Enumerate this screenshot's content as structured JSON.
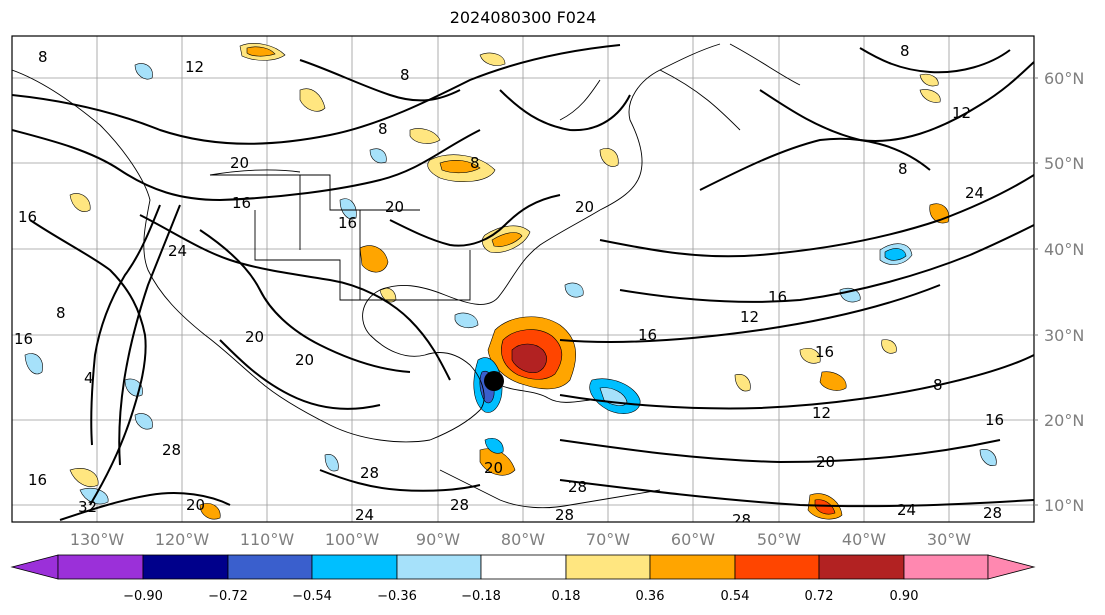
{
  "title": "2024080300 F024",
  "latitude_labels": [
    "60°N",
    "50°N",
    "40°N",
    "30°N",
    "20°N",
    "10°N"
  ],
  "longitude_labels": [
    "130°W",
    "120°W",
    "110°W",
    "100°W",
    "90°W",
    "80°W",
    "70°W",
    "60°W",
    "50°W",
    "40°W",
    "30°W"
  ],
  "contour_labels": [
    "8",
    "12",
    "16",
    "20",
    "24",
    "28",
    "32",
    "4"
  ],
  "colorbar": {
    "tick_labels": [
      "−0.90",
      "−0.72",
      "−0.54",
      "−0.36",
      "−0.18",
      "0.18",
      "0.36",
      "0.54",
      "0.72",
      "0.90"
    ],
    "colors": [
      "#9b30d9",
      "#00008b",
      "#3a5fcd",
      "#00bfff",
      "#a6e1fa",
      "#ffffff",
      "#ffe680",
      "#ffa500",
      "#ff4500",
      "#b22222",
      "#ff88b0"
    ]
  },
  "storm_marker_color": "#000000"
}
